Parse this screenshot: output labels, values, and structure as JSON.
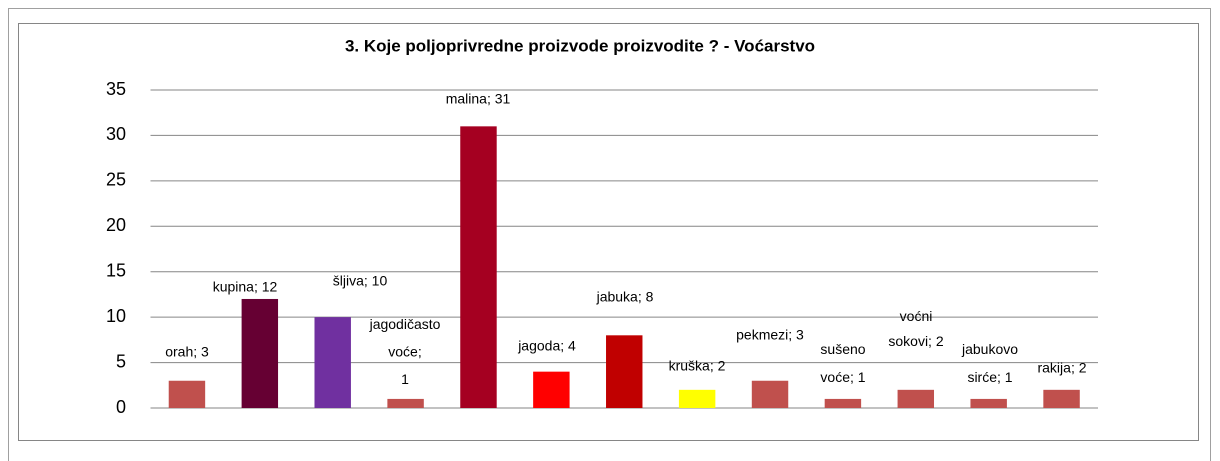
{
  "chart_data": {
    "type": "bar",
    "title": "3.  Koje poljoprivredne proizvode proizvodite ?  - Voćarstvo",
    "categories": [
      "orah",
      "kupina",
      "šljiva",
      "jagodičasto voće",
      "malina",
      "jagoda",
      "jabuka",
      "kruška",
      "pekmezi",
      "sušeno voće",
      "voćni sokovi",
      "jabukovo sirće",
      "rakija"
    ],
    "values": [
      3,
      12,
      10,
      1,
      31,
      4,
      8,
      2,
      3,
      1,
      2,
      1,
      2
    ],
    "value_labels": [
      "orah; 3",
      "kupina; 12",
      "šljiva; 10",
      "jagodičasto\nvoće;\n1",
      "malina; 31",
      "jagoda; 4",
      "jabuka; 8",
      "kruška; 2",
      "pekmezi; 3",
      "sušeno\nvoće; 1",
      "voćni\nsokovi; 2",
      "jabukovo\nsirće; 1",
      "rakija; 2"
    ],
    "colors": [
      "#c0504d",
      "#660033",
      "#7030a0",
      "#c0504d",
      "#a50021",
      "#ff0000",
      "#c00000",
      "#ffff00",
      "#c0504d",
      "#c0504d",
      "#c0504d",
      "#c0504d",
      "#c0504d"
    ],
    "ylim": [
      0,
      35
    ],
    "yticks": [
      0,
      5,
      10,
      15,
      20,
      25,
      30,
      35
    ],
    "grid": true
  }
}
